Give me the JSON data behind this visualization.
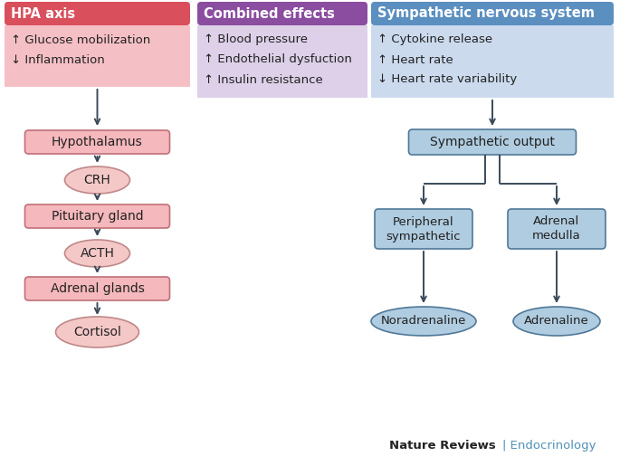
{
  "background_color": "#ffffff",
  "panels": {
    "hpa": {
      "header_text": "HPA axis",
      "header_bg": "#d94f5c",
      "header_text_color": "#ffffff",
      "info_bg": "#f5c0c5",
      "info_lines": [
        "↑ Glucose mobilization",
        "↓ Inflammation"
      ],
      "box_color": "#f5b8bc",
      "box_border": "#c07078",
      "oval_color": "#f5c8c8",
      "oval_border": "#c08888"
    },
    "combined": {
      "header_text": "Combined effects",
      "header_bg": "#8b4da0",
      "header_text_color": "#ffffff",
      "info_bg": "#ddd0e8",
      "info_lines": [
        "↑ Blood pressure",
        "↑ Endothelial dysfuction",
        "↑ Insulin resistance"
      ]
    },
    "sns": {
      "header_text": "Sympathetic nervous system",
      "header_bg": "#5b8fc0",
      "header_text_color": "#ffffff",
      "info_bg": "#ccdaee",
      "info_lines": [
        "↑ Cytokine release",
        "↑ Heart rate",
        "↓ Heart rate variability"
      ],
      "box_color": "#b0cce0",
      "box_border": "#507898",
      "oval_color": "#b0cce0",
      "oval_border": "#507898"
    }
  },
  "arrow_color": "#3a4a5a",
  "arrow_lw": 1.4,
  "footer_bold": "Nature Reviews",
  "footer_plain": "| Endocrinology",
  "footer_color": "#5090b8"
}
